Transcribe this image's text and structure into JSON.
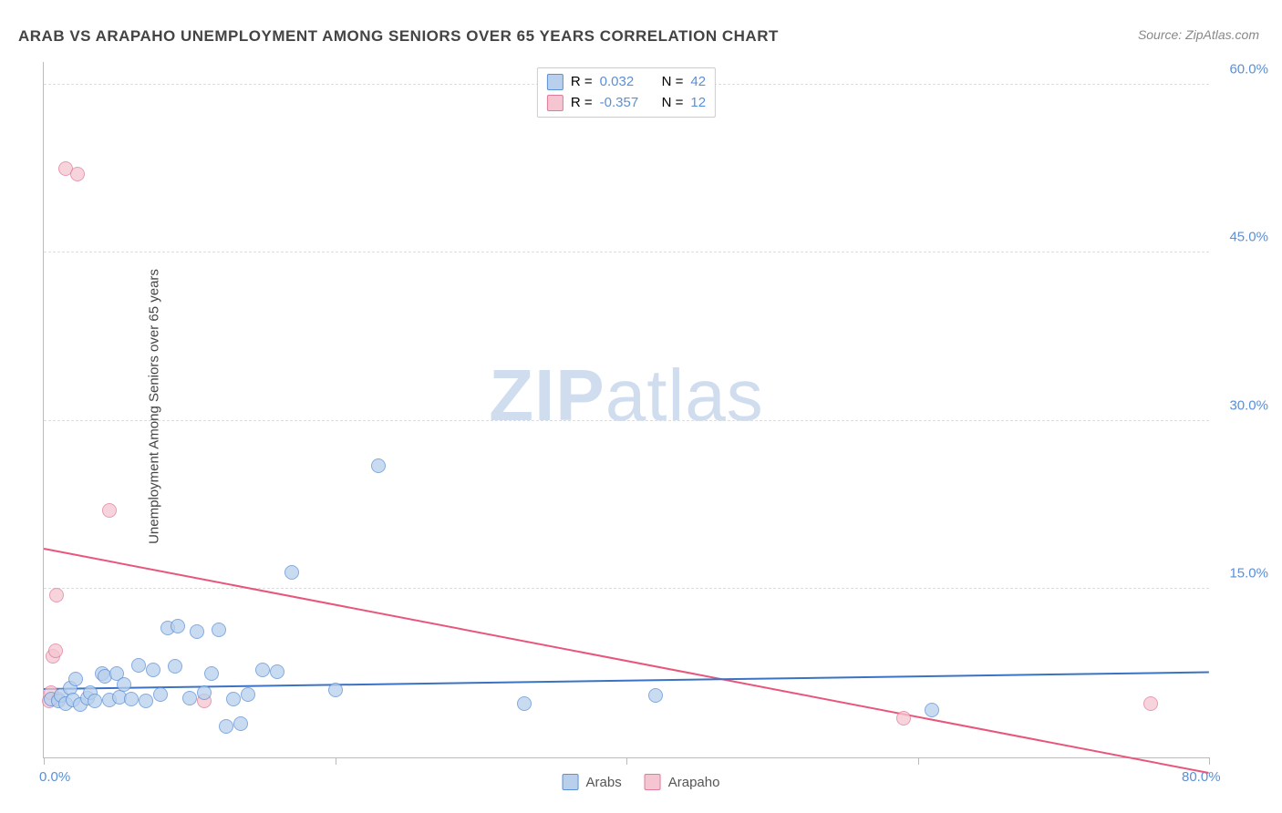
{
  "title": "ARAB VS ARAPAHO UNEMPLOYMENT AMONG SENIORS OVER 65 YEARS CORRELATION CHART",
  "source": "Source: ZipAtlas.com",
  "y_axis_label": "Unemployment Among Seniors over 65 years",
  "watermark_bold": "ZIP",
  "watermark_light": "atlas",
  "chart": {
    "type": "scatter",
    "xlim": [
      0,
      80
    ],
    "ylim": [
      0,
      62
    ],
    "x_ticks": [
      0,
      20,
      40,
      60,
      80
    ],
    "x_tick_labels": {
      "0": "0.0%",
      "80": "80.0%"
    },
    "y_grid": [
      15,
      30,
      45,
      60
    ],
    "y_tick_labels": {
      "15": "15.0%",
      "30": "30.0%",
      "45": "45.0%",
      "60": "60.0%"
    },
    "background_color": "#ffffff",
    "grid_color": "#dddddd",
    "axis_color": "#bbbbbb",
    "tick_label_color": "#5b8fd6"
  },
  "series": {
    "arabs": {
      "label": "Arabs",
      "fill": "#b8d0ec",
      "stroke": "#5b8fd6",
      "trend_color": "#3b72c4",
      "R": "0.032",
      "N": "42",
      "trend": {
        "x1": 0,
        "y1": 6.0,
        "x2": 80,
        "y2": 7.5
      },
      "points": [
        [
          0.5,
          5.2
        ],
        [
          1,
          5.0
        ],
        [
          1.2,
          5.5
        ],
        [
          1.5,
          4.8
        ],
        [
          1.8,
          6.2
        ],
        [
          2,
          5.1
        ],
        [
          2.2,
          7.0
        ],
        [
          2.5,
          4.7
        ],
        [
          3,
          5.3
        ],
        [
          3.2,
          5.8
        ],
        [
          3.5,
          5.0
        ],
        [
          4,
          7.5
        ],
        [
          4.2,
          7.2
        ],
        [
          4.5,
          5.1
        ],
        [
          5,
          7.5
        ],
        [
          5.2,
          5.4
        ],
        [
          5.5,
          6.5
        ],
        [
          6,
          5.2
        ],
        [
          6.5,
          8.2
        ],
        [
          7,
          5.0
        ],
        [
          7.5,
          7.8
        ],
        [
          8,
          5.6
        ],
        [
          8.5,
          11.5
        ],
        [
          9,
          8.1
        ],
        [
          9.2,
          11.7
        ],
        [
          10,
          5.3
        ],
        [
          10.5,
          11.2
        ],
        [
          11,
          5.8
        ],
        [
          11.5,
          7.5
        ],
        [
          12,
          11.4
        ],
        [
          12.5,
          2.8
        ],
        [
          13,
          5.2
        ],
        [
          13.5,
          3.0
        ],
        [
          14,
          5.6
        ],
        [
          15,
          7.8
        ],
        [
          16,
          7.6
        ],
        [
          17,
          16.5
        ],
        [
          20,
          6.0
        ],
        [
          23,
          26.0
        ],
        [
          33,
          4.8
        ],
        [
          42,
          5.5
        ],
        [
          61,
          4.2
        ]
      ]
    },
    "arapaho": {
      "label": "Arapaho",
      "fill": "#f5c6d1",
      "stroke": "#e07a9a",
      "trend_color": "#e8567c",
      "R": "-0.357",
      "N": "12",
      "trend": {
        "x1": 0,
        "y1": 18.5,
        "x2": 80,
        "y2": -1.5
      },
      "points": [
        [
          0.4,
          5.0
        ],
        [
          0.5,
          5.8
        ],
        [
          0.6,
          9.0
        ],
        [
          0.8,
          9.5
        ],
        [
          0.9,
          14.5
        ],
        [
          1.0,
          5.2
        ],
        [
          1.5,
          52.5
        ],
        [
          2.3,
          52.0
        ],
        [
          4.5,
          22.0
        ],
        [
          11,
          5.0
        ],
        [
          59,
          3.5
        ],
        [
          76,
          4.8
        ]
      ]
    }
  },
  "legend_top": {
    "r_label": "R =",
    "n_label": "N ="
  }
}
